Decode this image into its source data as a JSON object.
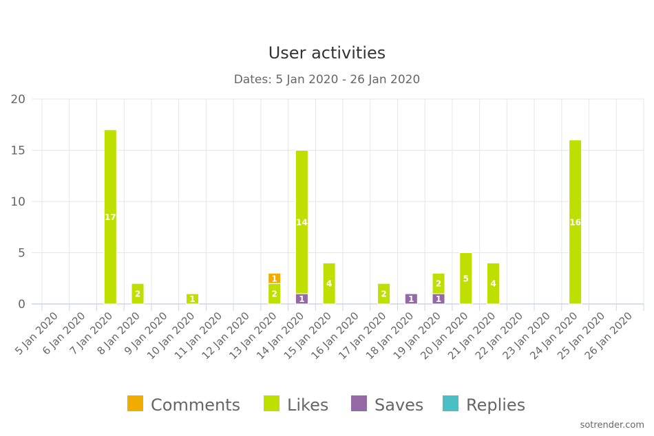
{
  "chart_data": {
    "type": "bar",
    "stacked": true,
    "title": "User activities",
    "subtitle": "Dates: 5 Jan 2020 - 26 Jan 2020",
    "categories": [
      "5 Jan 2020",
      "6 Jan 2020",
      "7 Jan 2020",
      "8 Jan 2020",
      "9 Jan 2020",
      "10 Jan 2020",
      "11 Jan 2020",
      "12 Jan 2020",
      "13 Jan 2020",
      "14 Jan 2020",
      "15 Jan 2020",
      "16 Jan 2020",
      "17 Jan 2020",
      "18 Jan 2020",
      "19 Jan 2020",
      "20 Jan 2020",
      "21 Jan 2020",
      "22 Jan 2020",
      "23 Jan 2020",
      "24 Jan 2020",
      "25 Jan 2020",
      "26 Jan 2020"
    ],
    "series": [
      {
        "name": "Comments",
        "color": "#f0ad00",
        "values": [
          0,
          0,
          0,
          0,
          0,
          0,
          0,
          0,
          1,
          0,
          0,
          0,
          0,
          0,
          0,
          0,
          0,
          0,
          0,
          0,
          0,
          0
        ]
      },
      {
        "name": "Likes",
        "color": "#bedf00",
        "values": [
          0,
          0,
          17,
          2,
          0,
          1,
          0,
          0,
          2,
          14,
          4,
          0,
          2,
          0,
          2,
          5,
          4,
          0,
          0,
          16,
          0,
          0
        ]
      },
      {
        "name": "Saves",
        "color": "#9369a6",
        "values": [
          0,
          0,
          0,
          0,
          0,
          0,
          0,
          0,
          0,
          1,
          0,
          0,
          0,
          1,
          1,
          0,
          0,
          0,
          0,
          0,
          0,
          0
        ]
      },
      {
        "name": "Replies",
        "color": "#4bbfc4",
        "values": [
          0,
          0,
          0,
          0,
          0,
          0,
          0,
          0,
          0,
          0,
          0,
          0,
          0,
          0,
          0,
          0,
          0,
          0,
          0,
          0,
          0,
          0
        ]
      }
    ],
    "stack_order_bottom_to_top": [
      "Saves",
      "Likes",
      "Comments",
      "Replies"
    ],
    "yticks": [
      0,
      5,
      10,
      15,
      20
    ],
    "ylim": [
      0,
      20
    ],
    "xlabel": "",
    "ylabel": "",
    "grid": true,
    "legend_position": "bottom",
    "data_labels": true
  },
  "credit": "sotrender.com"
}
